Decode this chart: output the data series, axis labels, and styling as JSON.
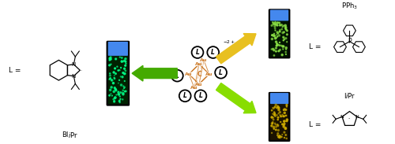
{
  "bg_color": "#ffffff",
  "gold_c": "#CC7722",
  "arrow_yellow": "#E8C020",
  "arrow_green_dark": "#44AA00",
  "arrow_green_light": "#88DD00",
  "vial_border": "#111111",
  "vial_blue": "#4488EE",
  "vial_left_body": "#002200",
  "vial_left_glow": "#00FF88",
  "vial_tr_body": "#1a1200",
  "vial_tr_glow": "#CCAA00",
  "vial_br_body": "#001500",
  "vial_br_glow": "#88DD44",
  "black": "#000000",
  "charge_text": "2+",
  "bipr_label": "BI",
  "bipr_label2": "i",
  "bipr_label3": "Pr",
  "iipr_label": "I",
  "iipr_label2": "i",
  "iipr_label3": "Pr",
  "pph3_label": "PPh",
  "pph3_label4": "3"
}
